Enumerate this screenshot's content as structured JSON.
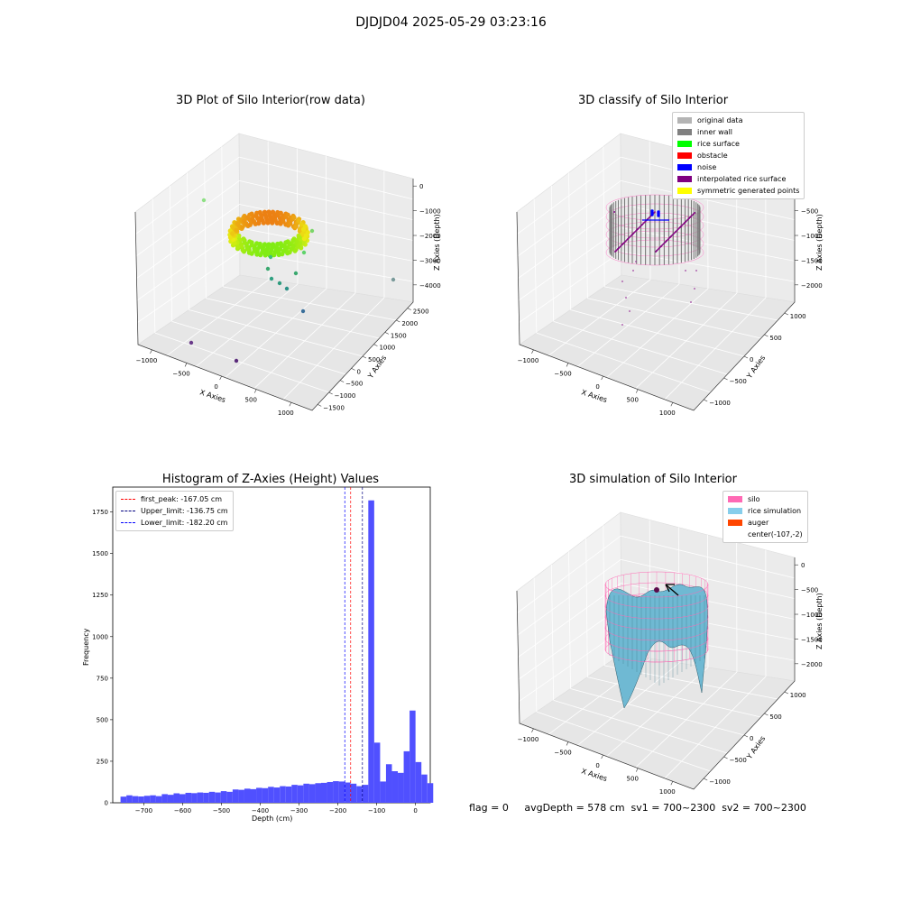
{
  "suptitle": "DJDJD04 2025-05-29 03:23:16",
  "status_line": "flag = 0     avgDepth = 578 cm  sv1 = 700~2300  sv2 = 700~2300",
  "chart_data": [
    {
      "type": "scatter",
      "title": "3D Plot of Silo Interior(row data)",
      "xlabel": "X Axies",
      "ylabel": "Y Axies",
      "zlabel": "Z Axies (Depth)",
      "x_ticks": [
        "−1000",
        "−500",
        "0",
        "500",
        "1000"
      ],
      "y_ticks": [
        "−1500",
        "−1000",
        "−500",
        "0",
        "500",
        "1000",
        "1500",
        "2000",
        "2500"
      ],
      "z_ticks": [
        "0",
        "−1000",
        "−2000",
        "−3000",
        "−4000"
      ],
      "grid": true
    },
    {
      "type": "scatter",
      "title": "3D classify of Silo Interior",
      "xlabel": "X Axies",
      "ylabel": "Y Axies",
      "zlabel": "Z Axies (Depth)",
      "x_ticks": [
        "−1000",
        "−500",
        "0",
        "500",
        "1000"
      ],
      "y_ticks": [
        "−1000",
        "−500",
        "0",
        "500",
        "1000"
      ],
      "z_ticks": [
        "0",
        "−500",
        "−1000",
        "−1500",
        "−2000"
      ],
      "legend_position": "top-right",
      "legend": [
        {
          "label": "original data",
          "color": "#b4b4b4"
        },
        {
          "label": "inner wall",
          "color": "#808080"
        },
        {
          "label": "rice surface",
          "color": "#00ff00"
        },
        {
          "label": "obstacle",
          "color": "#ff0000"
        },
        {
          "label": "noise",
          "color": "#0000ff"
        },
        {
          "label": "interpolated rice surface",
          "color": "#800080"
        },
        {
          "label": "symmetric generated points",
          "color": "#ffff00"
        }
      ],
      "grid": true
    },
    {
      "type": "bar",
      "title": "Histogram of Z-Axies (Height) Values",
      "xlabel": "Depth (cm)",
      "ylabel": "Frequency",
      "xlim": [
        -780,
        38
      ],
      "ylim": [
        0,
        1900
      ],
      "x_ticks": [
        -700,
        -600,
        -500,
        -400,
        -300,
        -200,
        -100,
        0
      ],
      "y_ticks": [
        0,
        250,
        500,
        750,
        1000,
        1250,
        1500,
        1750
      ],
      "bin_width": 15.2,
      "bin_start": -760,
      "values": [
        37,
        45,
        40,
        38,
        42,
        45,
        40,
        52,
        48,
        57,
        52,
        60,
        58,
        62,
        60,
        66,
        62,
        70,
        66,
        80,
        78,
        85,
        82,
        90,
        88,
        96,
        92,
        100,
        98,
        108,
        105,
        115,
        112,
        118,
        120,
        125,
        130,
        128,
        122,
        115,
        100,
        108,
        1820,
        362,
        128,
        232,
        190,
        180,
        310,
        555,
        245,
        170,
        118
      ],
      "lines": [
        {
          "label": "first_peak: -167.05 cm",
          "x": -167.05,
          "color": "#ff0000"
        },
        {
          "label": "Upper_limit: -136.75 cm",
          "x": -136.75,
          "color": "#000080"
        },
        {
          "label": "Lower_limit: -182.20 cm",
          "x": -182.2,
          "color": "#0000ff"
        }
      ],
      "bar_color": "#5050ff",
      "legend_position": "top-left",
      "grid": false
    },
    {
      "type": "surface",
      "title": "3D simulation of Silo Interior",
      "xlabel": "X Axies",
      "ylabel": "Y Axies",
      "zlabel": "Z Axies (Depth)",
      "x_ticks": [
        "−1000",
        "−500",
        "0",
        "500",
        "1000"
      ],
      "y_ticks": [
        "−1000",
        "−500",
        "0",
        "500",
        "1000"
      ],
      "z_ticks": [
        "0",
        "−500",
        "−1000",
        "−1500",
        "−2000"
      ],
      "legend_position": "top-right",
      "legend": [
        {
          "label": "silo",
          "color": "#ff69b4"
        },
        {
          "label": "rice simulation",
          "color": "#87ceeb"
        },
        {
          "label": "auger",
          "color": "#ff4500"
        },
        {
          "label": "center(-107,-2)",
          "color": ""
        }
      ],
      "grid": true
    }
  ]
}
